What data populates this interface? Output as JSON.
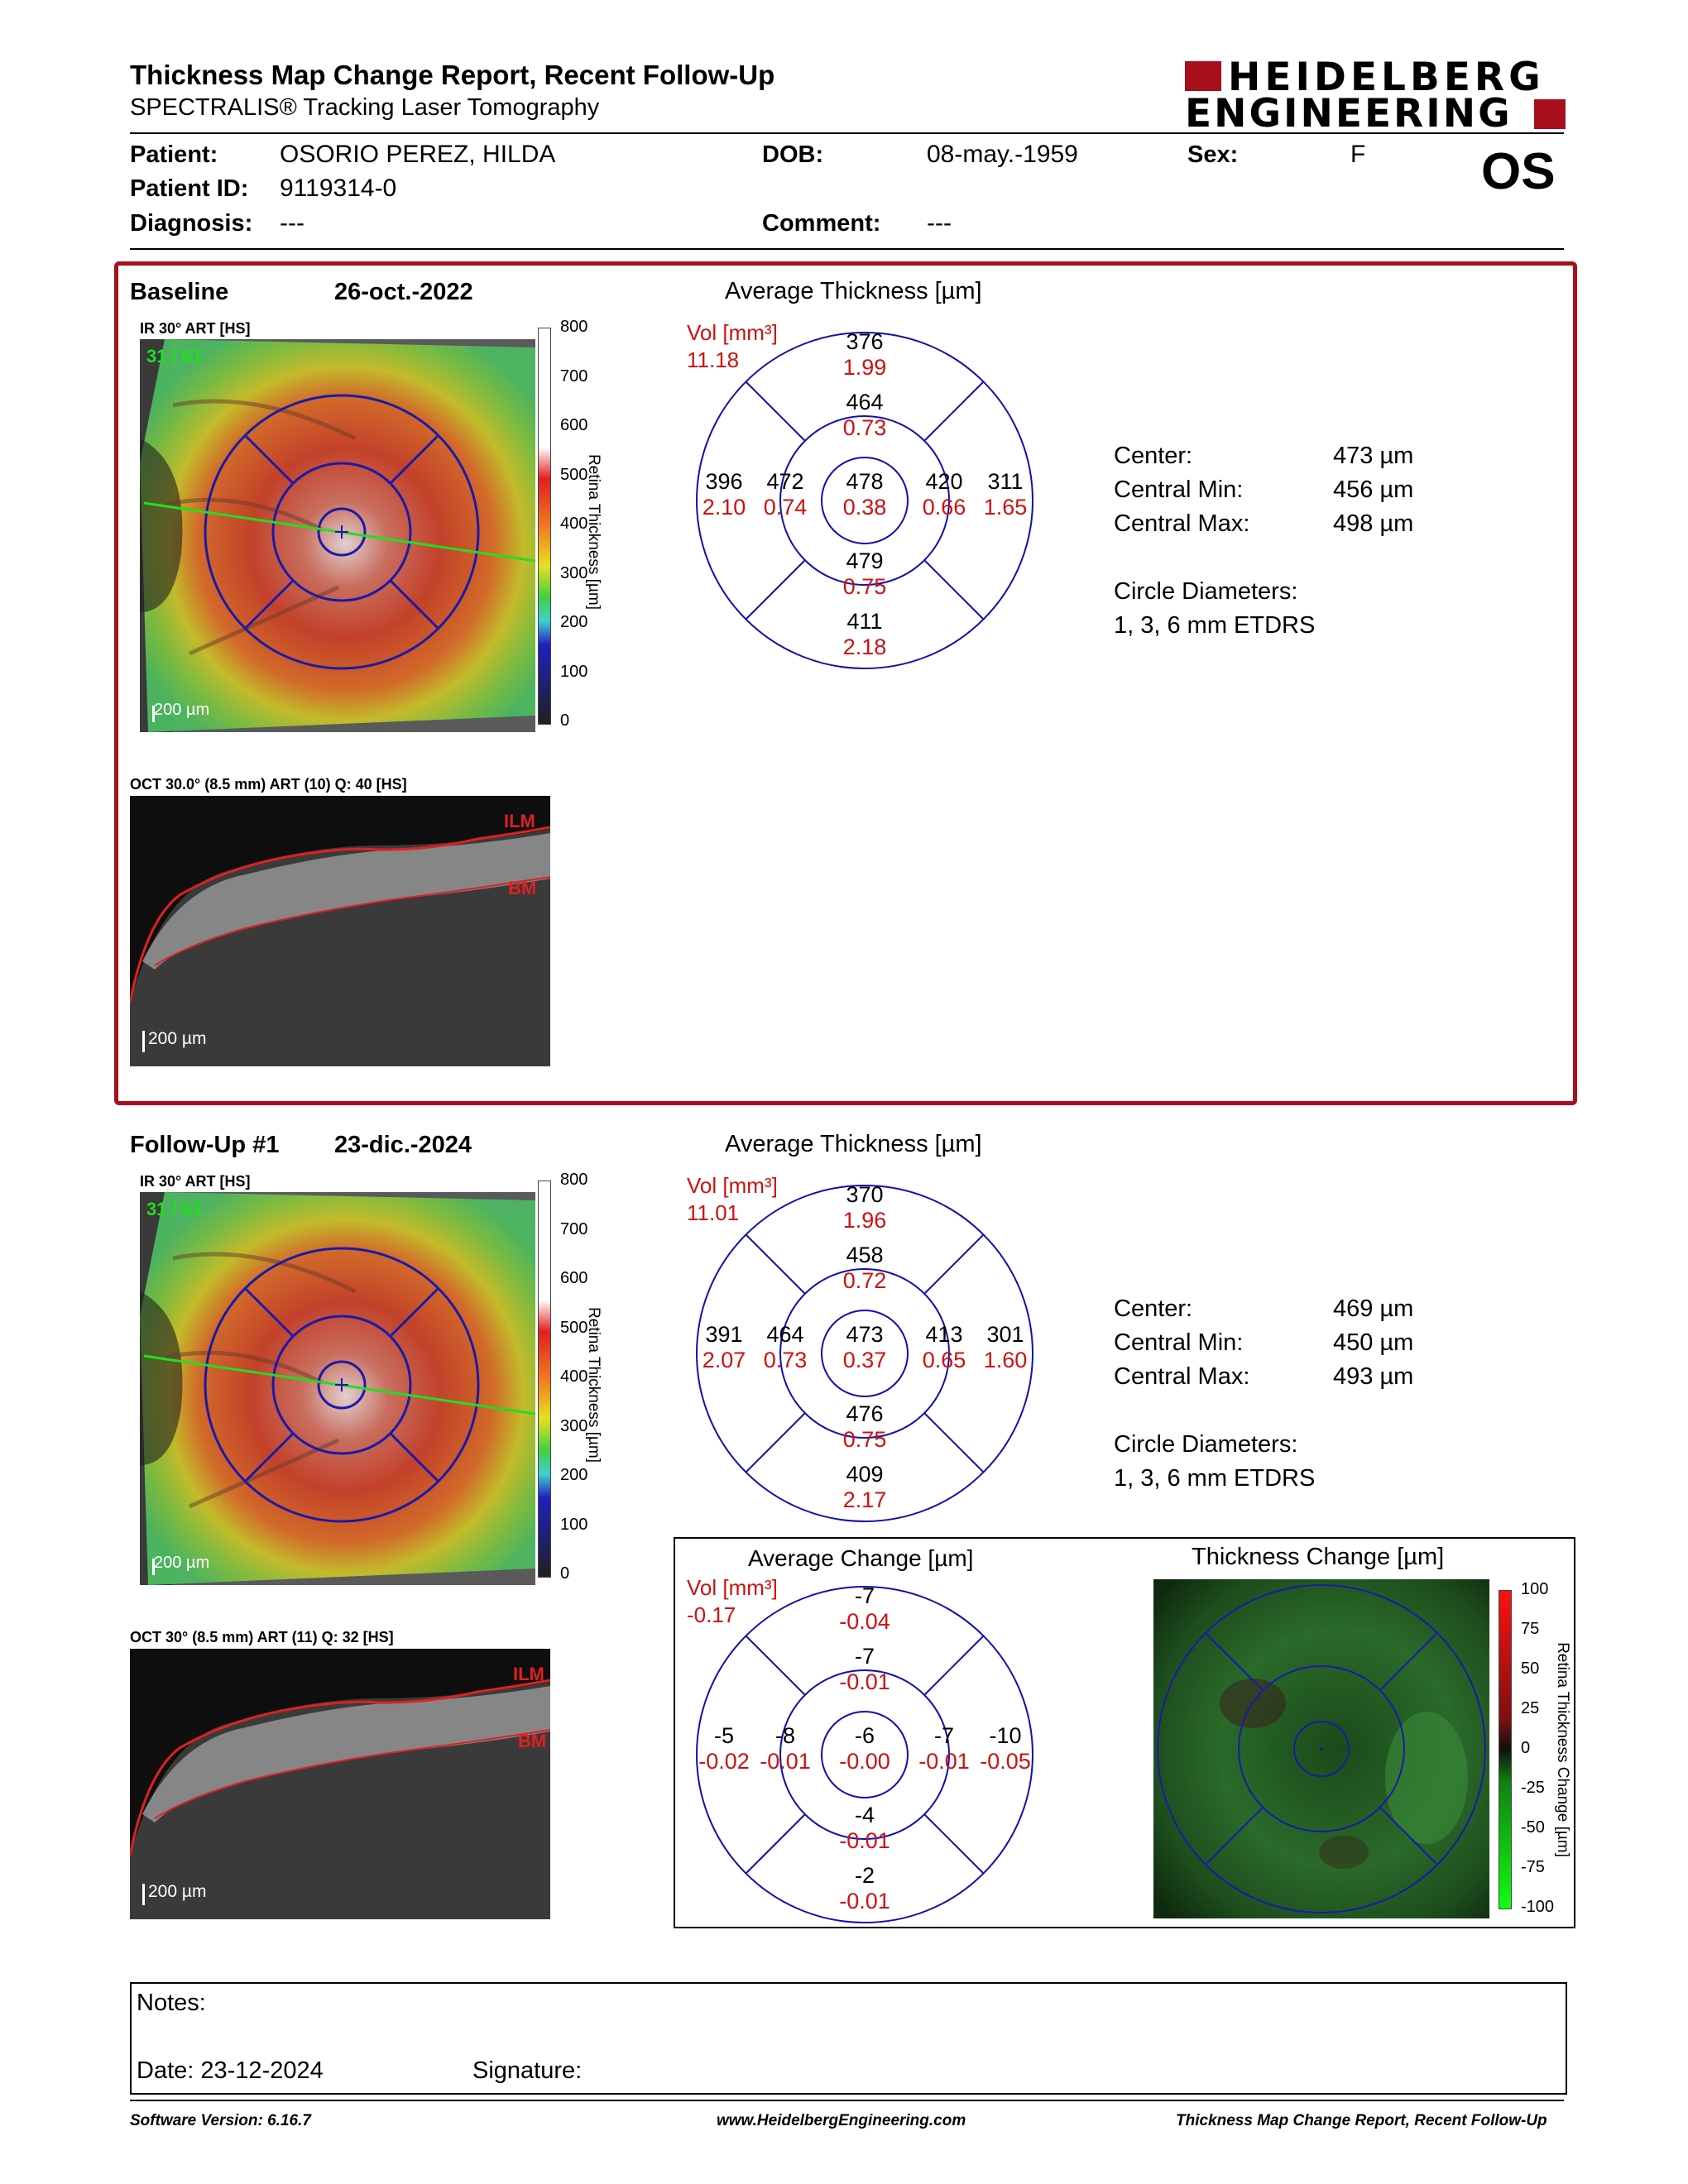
{
  "header": {
    "title": "Thickness Map Change Report, Recent Follow-Up",
    "subtitle": "SPECTRALIS® Tracking Laser Tomography",
    "logo_line1": "HEIDELBERG",
    "logo_line2": "ENGINEERING"
  },
  "patient": {
    "patient_label": "Patient:",
    "patient_value": "OSORIO PEREZ, HILDA",
    "dob_label": "DOB:",
    "dob_value": "08-may.-1959",
    "sex_label": "Sex:",
    "sex_value": "F",
    "id_label": "Patient ID:",
    "id_value": "9119314-0",
    "diag_label": "Diagnosis:",
    "diag_value": "---",
    "comment_label": "Comment:",
    "comment_value": "---",
    "eye": "OS"
  },
  "baseline": {
    "label": "Baseline",
    "date": "26-oct.-2022",
    "ir_caption": "IR 30° ART [HS]",
    "frame_counter": "31 / 61",
    "scale": "200 µm",
    "oct_caption": "OCT 30.0° (8.5 mm) ART (10) Q: 40 [HS]",
    "oct_scale": "200 µm",
    "ilm": "ILM",
    "bm": "BM",
    "avg_title": "Average Thickness [µm]",
    "vol_label": "Vol [mm³]",
    "vol_total": "11.18",
    "grid": {
      "outer_sup": [
        "376",
        "1.99"
      ],
      "inner_sup": [
        "464",
        "0.73"
      ],
      "outer_temp": [
        "396",
        "2.10"
      ],
      "inner_temp": [
        "472",
        "0.74"
      ],
      "center": [
        "478",
        "0.38"
      ],
      "inner_nas": [
        "420",
        "0.66"
      ],
      "outer_nas": [
        "311",
        "1.65"
      ],
      "inner_inf": [
        "479",
        "0.75"
      ],
      "outer_inf": [
        "411",
        "2.18"
      ]
    },
    "stats": [
      [
        "Center:",
        "473 µm"
      ],
      [
        "Central Min:",
        "456 µm"
      ],
      [
        "Central Max:",
        "498 µm"
      ]
    ],
    "circle_label": "Circle Diameters:",
    "circle_value": "1, 3, 6 mm ETDRS"
  },
  "followup": {
    "label": "Follow-Up #1",
    "date": "23-dic.-2024",
    "ir_caption": "IR 30° ART [HS]",
    "frame_counter": "31 / 61",
    "scale": "200 µm",
    "oct_caption": "OCT 30° (8.5 mm) ART (11) Q: 32 [HS]",
    "oct_scale": "200 µm",
    "ilm": "ILM",
    "bm": "BM",
    "avg_title": "Average Thickness [µm]",
    "vol_label": "Vol [mm³]",
    "vol_total": "11.01",
    "grid": {
      "outer_sup": [
        "370",
        "1.96"
      ],
      "inner_sup": [
        "458",
        "0.72"
      ],
      "outer_temp": [
        "391",
        "2.07"
      ],
      "inner_temp": [
        "464",
        "0.73"
      ],
      "center": [
        "473",
        "0.37"
      ],
      "inner_nas": [
        "413",
        "0.65"
      ],
      "outer_nas": [
        "301",
        "1.60"
      ],
      "inner_inf": [
        "476",
        "0.75"
      ],
      "outer_inf": [
        "409",
        "2.17"
      ]
    },
    "stats": [
      [
        "Center:",
        "469 µm"
      ],
      [
        "Central Min:",
        "450 µm"
      ],
      [
        "Central Max:",
        "493 µm"
      ]
    ],
    "circle_label": "Circle Diameters:",
    "circle_value": "1, 3, 6 mm ETDRS"
  },
  "change": {
    "avg_title": "Average Change [µm]",
    "vol_label": "Vol [mm³]",
    "vol_total": "-0.17",
    "grid": {
      "outer_sup": [
        "-7",
        "-0.04"
      ],
      "inner_sup": [
        "-7",
        "-0.01"
      ],
      "outer_temp": [
        "-5",
        "-0.02"
      ],
      "inner_temp": [
        "-8",
        "-0.01"
      ],
      "center": [
        "-6",
        "-0.00"
      ],
      "inner_nas": [
        "-7",
        "-0.01"
      ],
      "outer_nas": [
        "-10",
        "-0.05"
      ],
      "inner_inf": [
        "-4",
        "-0.01"
      ],
      "outer_inf": [
        "-2",
        "-0.01"
      ]
    },
    "map_title": "Thickness Change [µm]",
    "scale_ticks": [
      "100",
      "75",
      "50",
      "25",
      "0",
      "-25",
      "-50",
      "-75",
      "-100"
    ],
    "scale_label": "Retina Thickness Change [µm]"
  },
  "thickness_scale": {
    "ticks": [
      "800",
      "700",
      "600",
      "500",
      "400",
      "300",
      "200",
      "100",
      "0"
    ],
    "label": "Retina Thickness [µm]"
  },
  "notes": {
    "label": "Notes:",
    "date": "Date: 23-12-2024",
    "signature": "Signature:"
  },
  "footer": {
    "version": "Software Version: 6.16.7",
    "url": "www.HeidelbergEngineering.com",
    "report": "Thickness Map Change Report, Recent Follow-Up"
  },
  "colors": {
    "frame": "#a80f1c",
    "grid": "#1010b0",
    "value_red": "#d01010",
    "logo_red": "#a80f1c"
  }
}
